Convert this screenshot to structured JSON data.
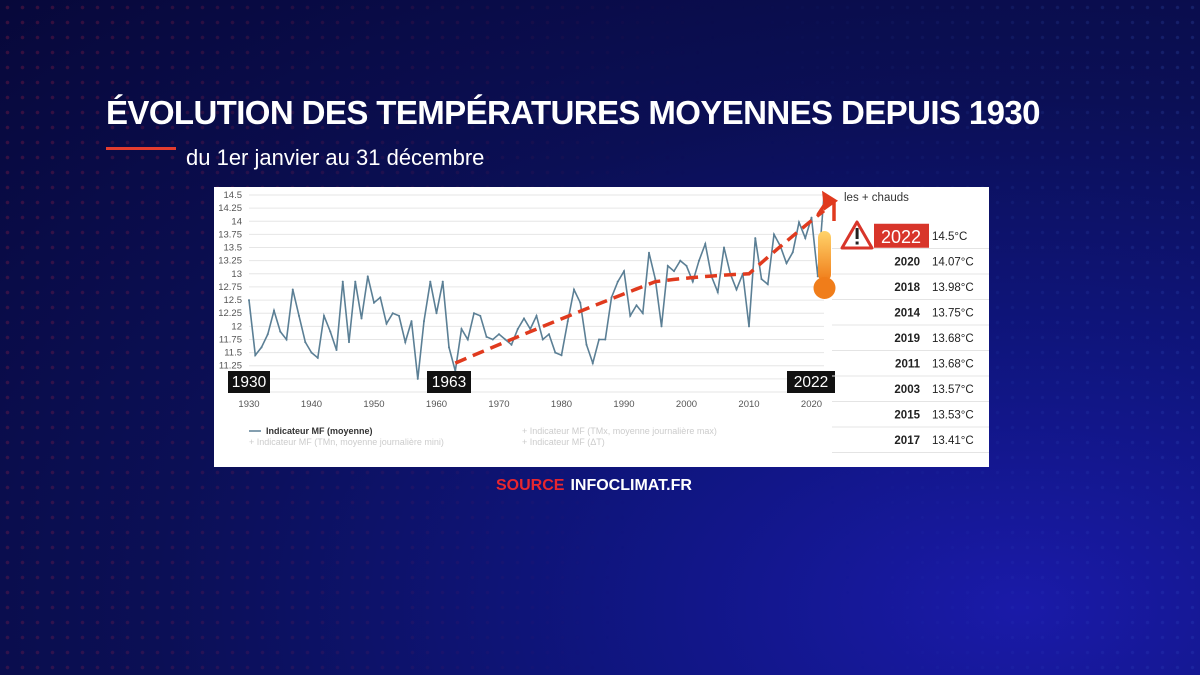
{
  "header": {
    "title": "ÉVOLUTION DES TEMPÉRATURES MOYENNES DEPUIS 1930",
    "subtitle": "du 1er janvier au 31 décembre"
  },
  "source": {
    "label": "SOURCE",
    "name": "INFOCLIMAT.FR"
  },
  "chart_data": {
    "type": "line",
    "ylim": [
      10.75,
      14.5
    ],
    "xlim": [
      1930,
      2022
    ],
    "y_ticks": [
      "14.5",
      "14.25",
      "14",
      "13.75",
      "13.5",
      "13.25",
      "13",
      "12.75",
      "12.5",
      "12.25",
      "12",
      "11.75",
      "11.5",
      "11.25",
      "11",
      "10.75"
    ],
    "x_ticks": [
      "1930",
      "1940",
      "1950",
      "1960",
      "1970",
      "1980",
      "1990",
      "2000",
      "2010",
      "2020"
    ],
    "series": [
      {
        "name": "Indicateur MF (moyenne)",
        "x": [
          1930,
          1931,
          1932,
          1933,
          1934,
          1935,
          1936,
          1937,
          1938,
          1939,
          1940,
          1941,
          1942,
          1943,
          1944,
          1945,
          1946,
          1947,
          1948,
          1949,
          1950,
          1951,
          1952,
          1953,
          1954,
          1955,
          1956,
          1957,
          1958,
          1959,
          1960,
          1961,
          1962,
          1963,
          1964,
          1965,
          1966,
          1967,
          1968,
          1969,
          1970,
          1971,
          1972,
          1973,
          1974,
          1975,
          1976,
          1977,
          1978,
          1979,
          1980,
          1981,
          1982,
          1983,
          1984,
          1985,
          1986,
          1987,
          1988,
          1989,
          1990,
          1991,
          1992,
          1993,
          1994,
          1995,
          1996,
          1997,
          1998,
          1999,
          2000,
          2001,
          2002,
          2003,
          2004,
          2005,
          2006,
          2007,
          2008,
          2009,
          2010,
          2011,
          2012,
          2013,
          2014,
          2015,
          2016,
          2017,
          2018,
          2019,
          2020,
          2021,
          2022
        ],
        "y": [
          12.5,
          11.45,
          11.6,
          11.85,
          12.3,
          11.9,
          11.75,
          12.7,
          12.2,
          11.7,
          11.5,
          11.4,
          12.2,
          11.9,
          11.55,
          12.85,
          11.7,
          12.85,
          12.15,
          12.95,
          12.45,
          12.55,
          12.05,
          12.25,
          12.2,
          11.7,
          12.1,
          11.0,
          12.1,
          12.85,
          12.25,
          12.85,
          11.6,
          11.15,
          11.95,
          11.75,
          12.25,
          12.2,
          11.8,
          11.75,
          11.85,
          11.75,
          11.65,
          11.95,
          12.15,
          11.95,
          12.2,
          11.75,
          11.85,
          11.5,
          11.45,
          12.1,
          12.7,
          12.45,
          11.65,
          11.3,
          11.75,
          11.75,
          12.55,
          12.85,
          13.05,
          12.2,
          12.4,
          12.25,
          13.4,
          12.9,
          12.0,
          13.15,
          13.05,
          13.25,
          13.15,
          12.85,
          13.25,
          13.57,
          12.95,
          12.65,
          13.5,
          13.0,
          12.7,
          13.0,
          12.0,
          13.68,
          12.9,
          12.8,
          13.75,
          13.53,
          13.2,
          13.41,
          13.98,
          13.68,
          14.07,
          12.95,
          14.5
        ]
      }
    ],
    "legend": [
      "Indicateur MF (moyenne)",
      "Indicateur MF (TMn, moyenne journalière mini)",
      "Indicateur MF (TMx, moyenne journalière max)",
      "Indicateur MF (ΔT)"
    ],
    "trend": [
      {
        "year": 1963,
        "value": 11.3
      },
      {
        "year": 1995,
        "value": 12.85
      },
      {
        "year": 2010,
        "value": 13.0
      },
      {
        "year": 2022,
        "value": 14.2
      }
    ],
    "year_markers": [
      "1930",
      "1963",
      "2022"
    ],
    "ranking": {
      "title": "les + chauds",
      "rows": [
        {
          "year": "2022",
          "value": "14.5°C"
        },
        {
          "year": "2020",
          "value": "14.07°C"
        },
        {
          "year": "2018",
          "value": "13.98°C"
        },
        {
          "year": "2014",
          "value": "13.75°C"
        },
        {
          "year": "2019",
          "value": "13.68°C"
        },
        {
          "year": "2011",
          "value": "13.68°C"
        },
        {
          "year": "2003",
          "value": "13.57°C"
        },
        {
          "year": "2015",
          "value": "13.53°C"
        },
        {
          "year": "2017",
          "value": "13.41°C"
        }
      ]
    },
    "colors": {
      "line": "#5b7f95",
      "trend": "#e03a1e",
      "highlight": "#d8352a",
      "thermo": "#f07d1a"
    }
  }
}
